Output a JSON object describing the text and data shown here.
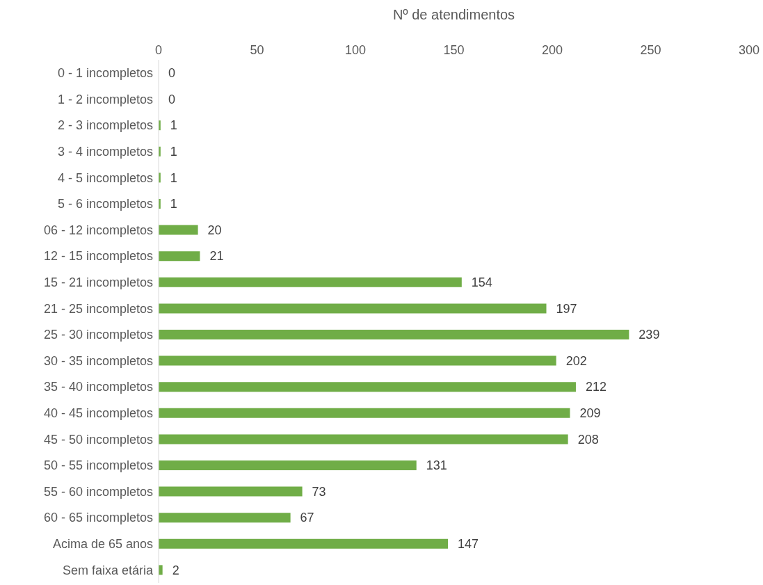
{
  "chart_data": {
    "type": "bar",
    "orientation": "horizontal",
    "xlabel": "Nº de atendimentos",
    "categories": [
      "0 - 1 incompletos",
      "1 - 2 incompletos",
      "2 - 3 incompletos",
      "3 - 4  incompletos",
      "4 - 5 incompletos",
      "5 - 6 incompletos",
      "06 - 12 incompletos",
      "12 - 15 incompletos",
      "15 - 21 incompletos",
      "21 - 25 incompletos",
      "25 - 30 incompletos",
      "30 - 35 incompletos",
      "35 - 40 incompletos",
      "40 - 45 incompletos",
      "45 - 50 incompletos",
      "50 - 55 incompletos",
      "55 - 60 incompletos",
      "60 - 65 incompletos",
      "Acima de 65 anos",
      "Sem faixa etária"
    ],
    "values": [
      0,
      0,
      1,
      1,
      1,
      1,
      20,
      21,
      154,
      197,
      239,
      202,
      212,
      209,
      208,
      131,
      73,
      67,
      147,
      2
    ],
    "color": "#70ad47",
    "xlim": [
      0,
      300
    ],
    "xticks": [
      0,
      50,
      100,
      150,
      200,
      250,
      300
    ],
    "data_labels": true
  }
}
